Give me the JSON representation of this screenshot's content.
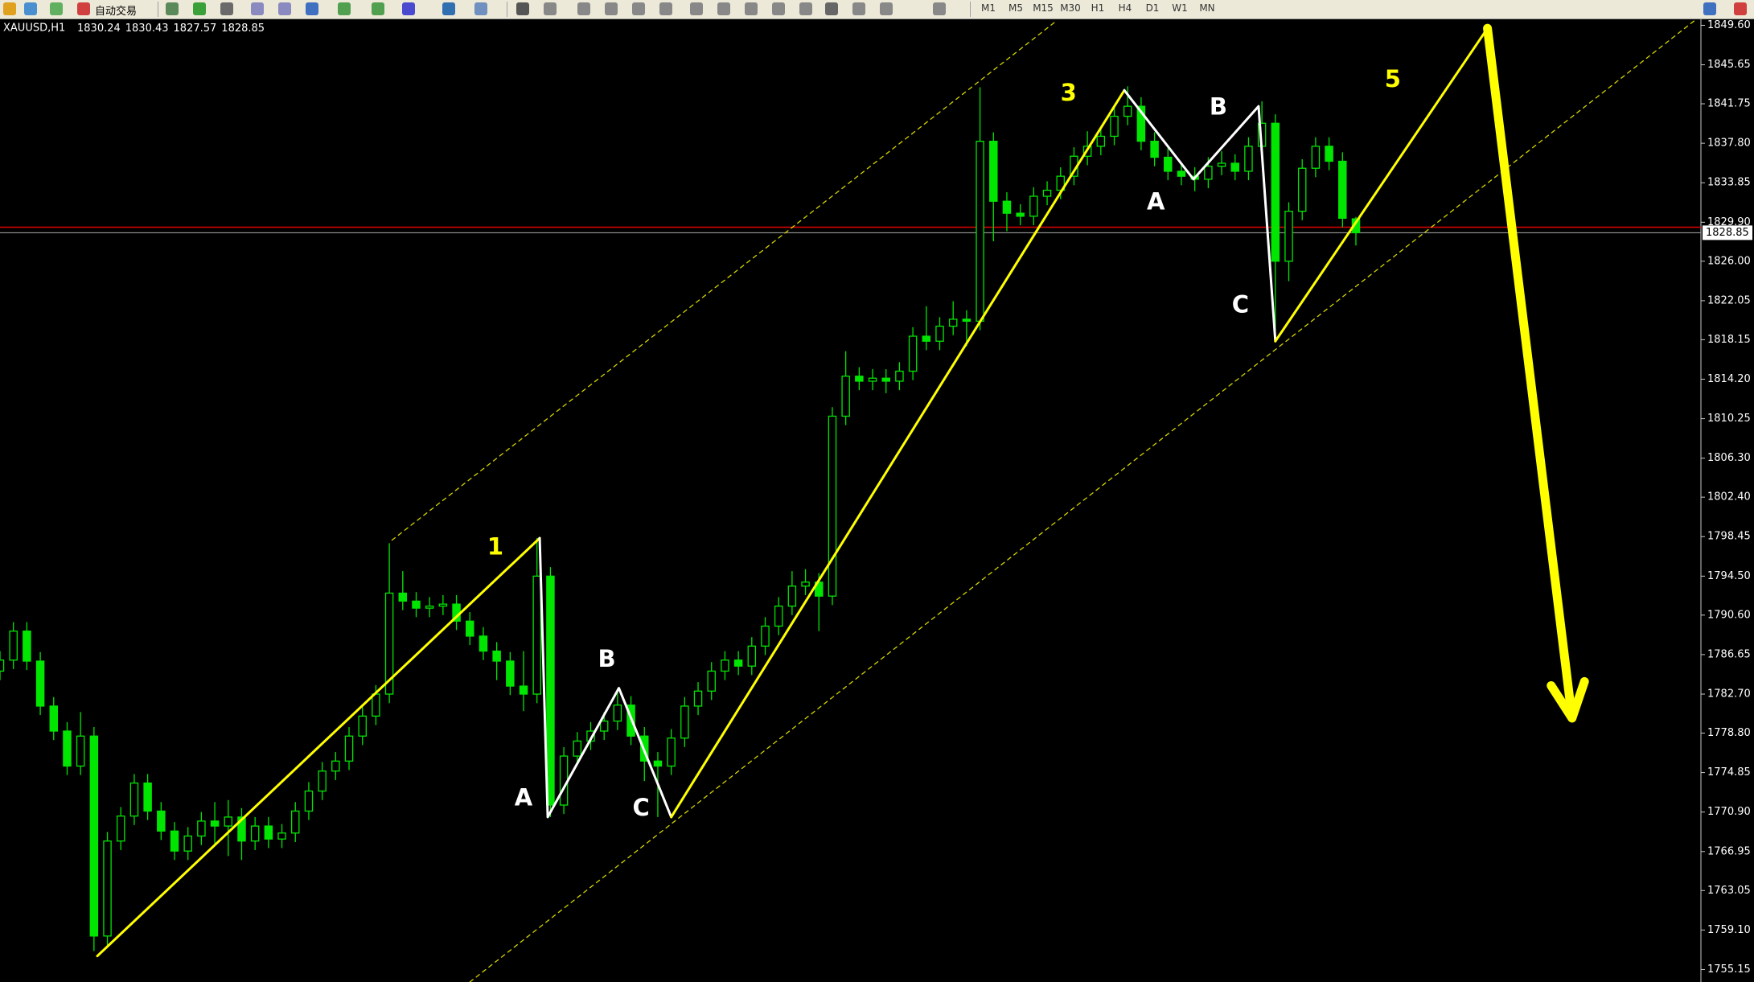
{
  "toolbar": {
    "auto_trading": "自动交易",
    "timeframes": [
      "M1",
      "M5",
      "M15",
      "M30",
      "H1",
      "H4",
      "D1",
      "W1",
      "MN"
    ]
  },
  "chart_data": {
    "type": "candlestick",
    "title": "XAUUSD,H1",
    "candle_color": "#00e600",
    "background": "#000000",
    "open": [
      1785.0,
      1786.1,
      1789.0,
      1786.0,
      1781.5,
      1779.0,
      1775.5,
      1778.5,
      1758.5,
      1768.0,
      1770.5,
      1773.8,
      1771.0,
      1769.0,
      1767.0,
      1768.5,
      1770.0,
      1769.5,
      1770.4,
      1768.0,
      1769.5,
      1768.2,
      1768.8,
      1771.0,
      1773.0,
      1775.0,
      1776.0,
      1778.5,
      1780.5,
      1782.7,
      1792.8,
      1792.0,
      1791.3,
      1791.5,
      1791.7,
      1790.0,
      1788.5,
      1787.0,
      1786.0,
      1783.5,
      1782.7,
      1794.5,
      1771.6,
      1776.5,
      1778.0,
      1779.0,
      1780.0,
      1781.6,
      1778.5,
      1776.0,
      1775.5,
      1778.3,
      1781.5,
      1783.0,
      1785.0,
      1786.1,
      1785.5,
      1787.5,
      1789.5,
      1791.5,
      1793.5,
      1793.9,
      1792.5,
      1810.5,
      1814.5,
      1814.0,
      1814.3,
      1814.0,
      1815.0,
      1818.5,
      1818.0,
      1819.5,
      1820.2,
      1820.0,
      1838.0,
      1832.0,
      1830.8,
      1830.5,
      1832.5,
      1833.1,
      1834.5,
      1836.5,
      1837.5,
      1838.5,
      1840.5,
      1841.5,
      1838.0,
      1836.4,
      1835.0,
      1834.5,
      1834.2,
      1835.5,
      1835.8,
      1835.0,
      1837.5,
      1839.8,
      1826.0,
      1831.0,
      1835.3,
      1837.5,
      1836.0,
      1830.24
    ],
    "high": [
      1787.0,
      1789.9,
      1789.9,
      1786.9,
      1782.4,
      1779.9,
      1780.9,
      1779.4,
      1768.9,
      1771.4,
      1774.7,
      1774.7,
      1771.9,
      1769.9,
      1769.4,
      1770.9,
      1771.9,
      1772.1,
      1771.3,
      1770.4,
      1770.4,
      1769.7,
      1771.9,
      1773.9,
      1775.9,
      1776.9,
      1779.4,
      1781.4,
      1783.6,
      1797.8,
      1795.0,
      1792.9,
      1792.4,
      1792.6,
      1792.6,
      1790.9,
      1789.4,
      1787.9,
      1786.9,
      1787.0,
      1798.3,
      1795.4,
      1777.4,
      1778.9,
      1779.9,
      1780.9,
      1783.3,
      1782.5,
      1779.4,
      1776.9,
      1779.2,
      1782.4,
      1783.9,
      1785.9,
      1787.0,
      1787.0,
      1788.4,
      1790.4,
      1792.4,
      1795.0,
      1795.2,
      1794.8,
      1811.4,
      1817.0,
      1815.4,
      1815.2,
      1815.2,
      1815.9,
      1819.4,
      1821.5,
      1820.4,
      1822.0,
      1821.1,
      1843.4,
      1838.9,
      1832.9,
      1831.7,
      1833.4,
      1834.0,
      1835.4,
      1837.4,
      1839.0,
      1839.4,
      1841.4,
      1843.5,
      1842.4,
      1838.9,
      1837.3,
      1835.9,
      1835.4,
      1836.4,
      1837.0,
      1836.7,
      1838.4,
      1842.0,
      1840.7,
      1831.9,
      1836.2,
      1838.4,
      1838.4,
      1836.9,
      1830.43
    ],
    "low": [
      1784.1,
      1785.2,
      1785.1,
      1780.6,
      1778.1,
      1774.6,
      1774.6,
      1757.0,
      1757.6,
      1767.1,
      1769.6,
      1770.1,
      1768.1,
      1766.1,
      1766.1,
      1767.6,
      1767.6,
      1766.5,
      1766.1,
      1767.1,
      1767.3,
      1767.3,
      1767.9,
      1770.1,
      1772.1,
      1774.1,
      1775.1,
      1777.6,
      1779.6,
      1781.8,
      1791.1,
      1790.4,
      1790.4,
      1790.6,
      1789.1,
      1787.6,
      1786.1,
      1784.1,
      1782.6,
      1781.0,
      1781.8,
      1770.4,
      1770.7,
      1775.6,
      1777.1,
      1778.1,
      1779.1,
      1777.6,
      1774.0,
      1770.4,
      1774.6,
      1777.4,
      1780.6,
      1782.1,
      1784.1,
      1784.6,
      1784.6,
      1786.6,
      1788.6,
      1790.6,
      1792.6,
      1789.0,
      1791.6,
      1809.6,
      1813.1,
      1813.1,
      1812.8,
      1813.1,
      1814.1,
      1817.1,
      1817.1,
      1818.6,
      1817.5,
      1819.1,
      1828.0,
      1829.0,
      1829.6,
      1829.6,
      1831.6,
      1832.2,
      1833.6,
      1835.6,
      1836.6,
      1837.6,
      1839.6,
      1837.1,
      1835.5,
      1834.1,
      1833.6,
      1833.0,
      1833.3,
      1834.6,
      1834.1,
      1834.1,
      1836.6,
      1818.0,
      1824.0,
      1830.1,
      1834.4,
      1835.1,
      1829.4,
      1827.57
    ],
    "close": [
      1786.1,
      1789.0,
      1786.0,
      1781.5,
      1779.0,
      1775.5,
      1778.5,
      1758.5,
      1768.0,
      1770.5,
      1773.8,
      1771.0,
      1769.0,
      1767.0,
      1768.5,
      1770.0,
      1769.5,
      1770.4,
      1768.0,
      1769.5,
      1768.2,
      1768.8,
      1771.0,
      1773.0,
      1775.0,
      1776.0,
      1778.5,
      1780.5,
      1782.7,
      1792.8,
      1792.0,
      1791.3,
      1791.5,
      1791.7,
      1790.0,
      1788.5,
      1787.0,
      1786.0,
      1783.5,
      1782.7,
      1794.5,
      1771.6,
      1776.5,
      1778.0,
      1779.0,
      1780.0,
      1781.6,
      1778.5,
      1776.0,
      1775.5,
      1778.3,
      1781.5,
      1783.0,
      1785.0,
      1786.1,
      1785.5,
      1787.5,
      1789.5,
      1791.5,
      1793.5,
      1793.9,
      1792.5,
      1810.5,
      1814.5,
      1814.0,
      1814.3,
      1814.0,
      1815.0,
      1818.5,
      1818.0,
      1819.5,
      1820.2,
      1820.0,
      1838.0,
      1832.0,
      1830.8,
      1830.5,
      1832.5,
      1833.1,
      1834.5,
      1836.5,
      1837.5,
      1838.5,
      1840.5,
      1841.5,
      1838.0,
      1836.4,
      1835.0,
      1834.5,
      1834.2,
      1835.5,
      1835.8,
      1835.0,
      1837.5,
      1839.8,
      1826.0,
      1831.0,
      1835.3,
      1837.5,
      1836.0,
      1830.3,
      1828.85
    ],
    "xlim": [
      0,
      126.7
    ],
    "ylim": [
      1753.9,
      1850.2
    ],
    "yticks": [
      {
        "value": 1849.6,
        "label": "1849.60"
      },
      1845.65,
      1841.75,
      {
        "value": 1837.8,
        "label": "1837.80"
      },
      1833.85,
      {
        "value": 1829.9,
        "label": "1829.90"
      },
      {
        "value": 1826.0,
        "label": "1826.00"
      },
      1822.05,
      1818.15,
      {
        "value": 1814.2,
        "label": "1814.20"
      },
      1810.25,
      {
        "value": 1806.3,
        "label": "1806.30"
      },
      {
        "value": 1802.4,
        "label": "1802.40"
      },
      1798.45,
      {
        "value": 1794.5,
        "label": "1794.50"
      },
      {
        "value": 1790.6,
        "label": "1790.60"
      },
      1786.65,
      {
        "value": 1782.7,
        "label": "1782.70"
      },
      {
        "value": 1778.8,
        "label": "1778.80"
      },
      1774.85,
      {
        "value": 1770.9,
        "label": "1770.90"
      },
      1766.95,
      1763.05,
      {
        "value": 1759.1,
        "label": "1759.10"
      },
      1755.15
    ],
    "alert_line": {
      "value": 1829.4,
      "color": "#e00000"
    },
    "channel_lines": [
      {
        "color": "#d4d400",
        "x": [
          35.0,
          126.25
        ],
        "y": [
          1753.9,
          1850.1
        ]
      },
      {
        "color": "#d4d400",
        "x": [
          29.2,
          78.75
        ],
        "y": [
          1798.1,
          1850.1
        ]
      }
    ],
    "wave_lines": [
      {
        "color": "#ffff00",
        "x": [
          7.25,
          40.2
        ],
        "y": [
          1756.5,
          1798.3
        ]
      },
      {
        "color": "#ffffff",
        "x": [
          40.2,
          40.8,
          46.1,
          50.0
        ],
        "y": [
          1798.3,
          1770.4,
          1783.3,
          1770.4
        ]
      },
      {
        "color": "#ffff00",
        "x": [
          50.0,
          83.75
        ],
        "y": [
          1770.4,
          1843.1
        ]
      },
      {
        "color": "#ffffff",
        "x": [
          83.75,
          88.9,
          93.75,
          95.0
        ],
        "y": [
          1843.1,
          1834.2,
          1841.5,
          1818.0
        ]
      },
      {
        "color": "#ffff00",
        "x": [
          95.0,
          110.8
        ],
        "y": [
          1818.0,
          1849.3
        ]
      }
    ],
    "arrow": {
      "color": "#ffff00",
      "x": [
        110.8,
        117.1
      ],
      "y": [
        1849.3,
        1780.3
      ]
    },
    "annotations": [
      {
        "text": "1",
        "color": "#ffff00",
        "x": 36.9,
        "y": 1797.3
      },
      {
        "text": "3",
        "color": "#ffff00",
        "x": 79.6,
        "y": 1842.7
      },
      {
        "text": "5",
        "color": "#ffff00",
        "x": 103.75,
        "y": 1844.1
      },
      {
        "text": "A",
        "color": "#ffffff",
        "x": 39.0,
        "y": 1772.2
      },
      {
        "text": "B",
        "color": "#ffffff",
        "x": 45.2,
        "y": 1786.1
      },
      {
        "text": "C",
        "color": "#ffffff",
        "x": 47.75,
        "y": 1771.2
      },
      {
        "text": "A",
        "color": "#ffffff",
        "x": 86.1,
        "y": 1831.8
      },
      {
        "text": "B",
        "color": "#ffffff",
        "x": 90.75,
        "y": 1841.3
      },
      {
        "text": "C",
        "color": "#ffffff",
        "x": 92.4,
        "y": 1821.5
      }
    ]
  }
}
